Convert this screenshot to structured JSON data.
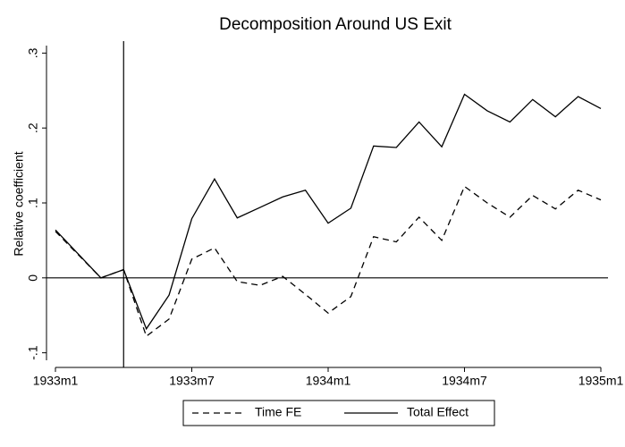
{
  "chart_data": {
    "type": "line",
    "title": "Decomposition Around US Exit",
    "y_label": "Relative coefficient",
    "x": [
      -324,
      -322,
      -321,
      -320,
      -319,
      -318,
      -317,
      -316,
      -315,
      -314,
      -313,
      -312,
      -311,
      -310,
      -309,
      -308,
      -307,
      -306,
      -305,
      -304,
      -303,
      -302,
      -301,
      -300
    ],
    "series": [
      {
        "name": "Time FE",
        "color": "#000000",
        "dash": true,
        "values": [
          0.062,
          0,
          0.011,
          -0.078,
          -0.055,
          0.025,
          0.04,
          -0.005,
          -0.01,
          0.002,
          -0.022,
          -0.047,
          -0.025,
          0.055,
          0.048,
          0.081,
          0.05,
          0.122,
          0.1,
          0.081,
          0.11,
          0.092,
          0.117,
          0.104
        ]
      },
      {
        "name": "Total Effect",
        "color": "#000000",
        "dash": false,
        "values": [
          0.064,
          0,
          0.011,
          -0.068,
          -0.023,
          0.079,
          0.132,
          0.08,
          0.094,
          0.108,
          0.117,
          0.073,
          0.093,
          0.176,
          0.174,
          0.208,
          0.175,
          0.245,
          0.223,
          0.208,
          0.238,
          0.215,
          0.242,
          0.226
        ]
      }
    ],
    "xlim": [
      -324,
      -300
    ],
    "xticks": [
      {
        "value": -324,
        "label": "1933m1"
      },
      {
        "value": -318,
        "label": "1933m7"
      },
      {
        "value": -312,
        "label": "1934m1"
      },
      {
        "value": -306,
        "label": "1934m7"
      },
      {
        "value": -300,
        "label": "1935m1"
      }
    ],
    "ylim": [
      -0.11,
      0.31
    ],
    "yticks": [
      {
        "value": -0.1,
        "label": "-.1"
      },
      0,
      {
        "value": 0.1,
        "label": ".1"
      },
      {
        "value": 0.2,
        "label": ".2"
      },
      {
        "value": 0.3,
        "label": ".3"
      }
    ],
    "xline": -321,
    "yline": 0,
    "legend": "bottom"
  }
}
